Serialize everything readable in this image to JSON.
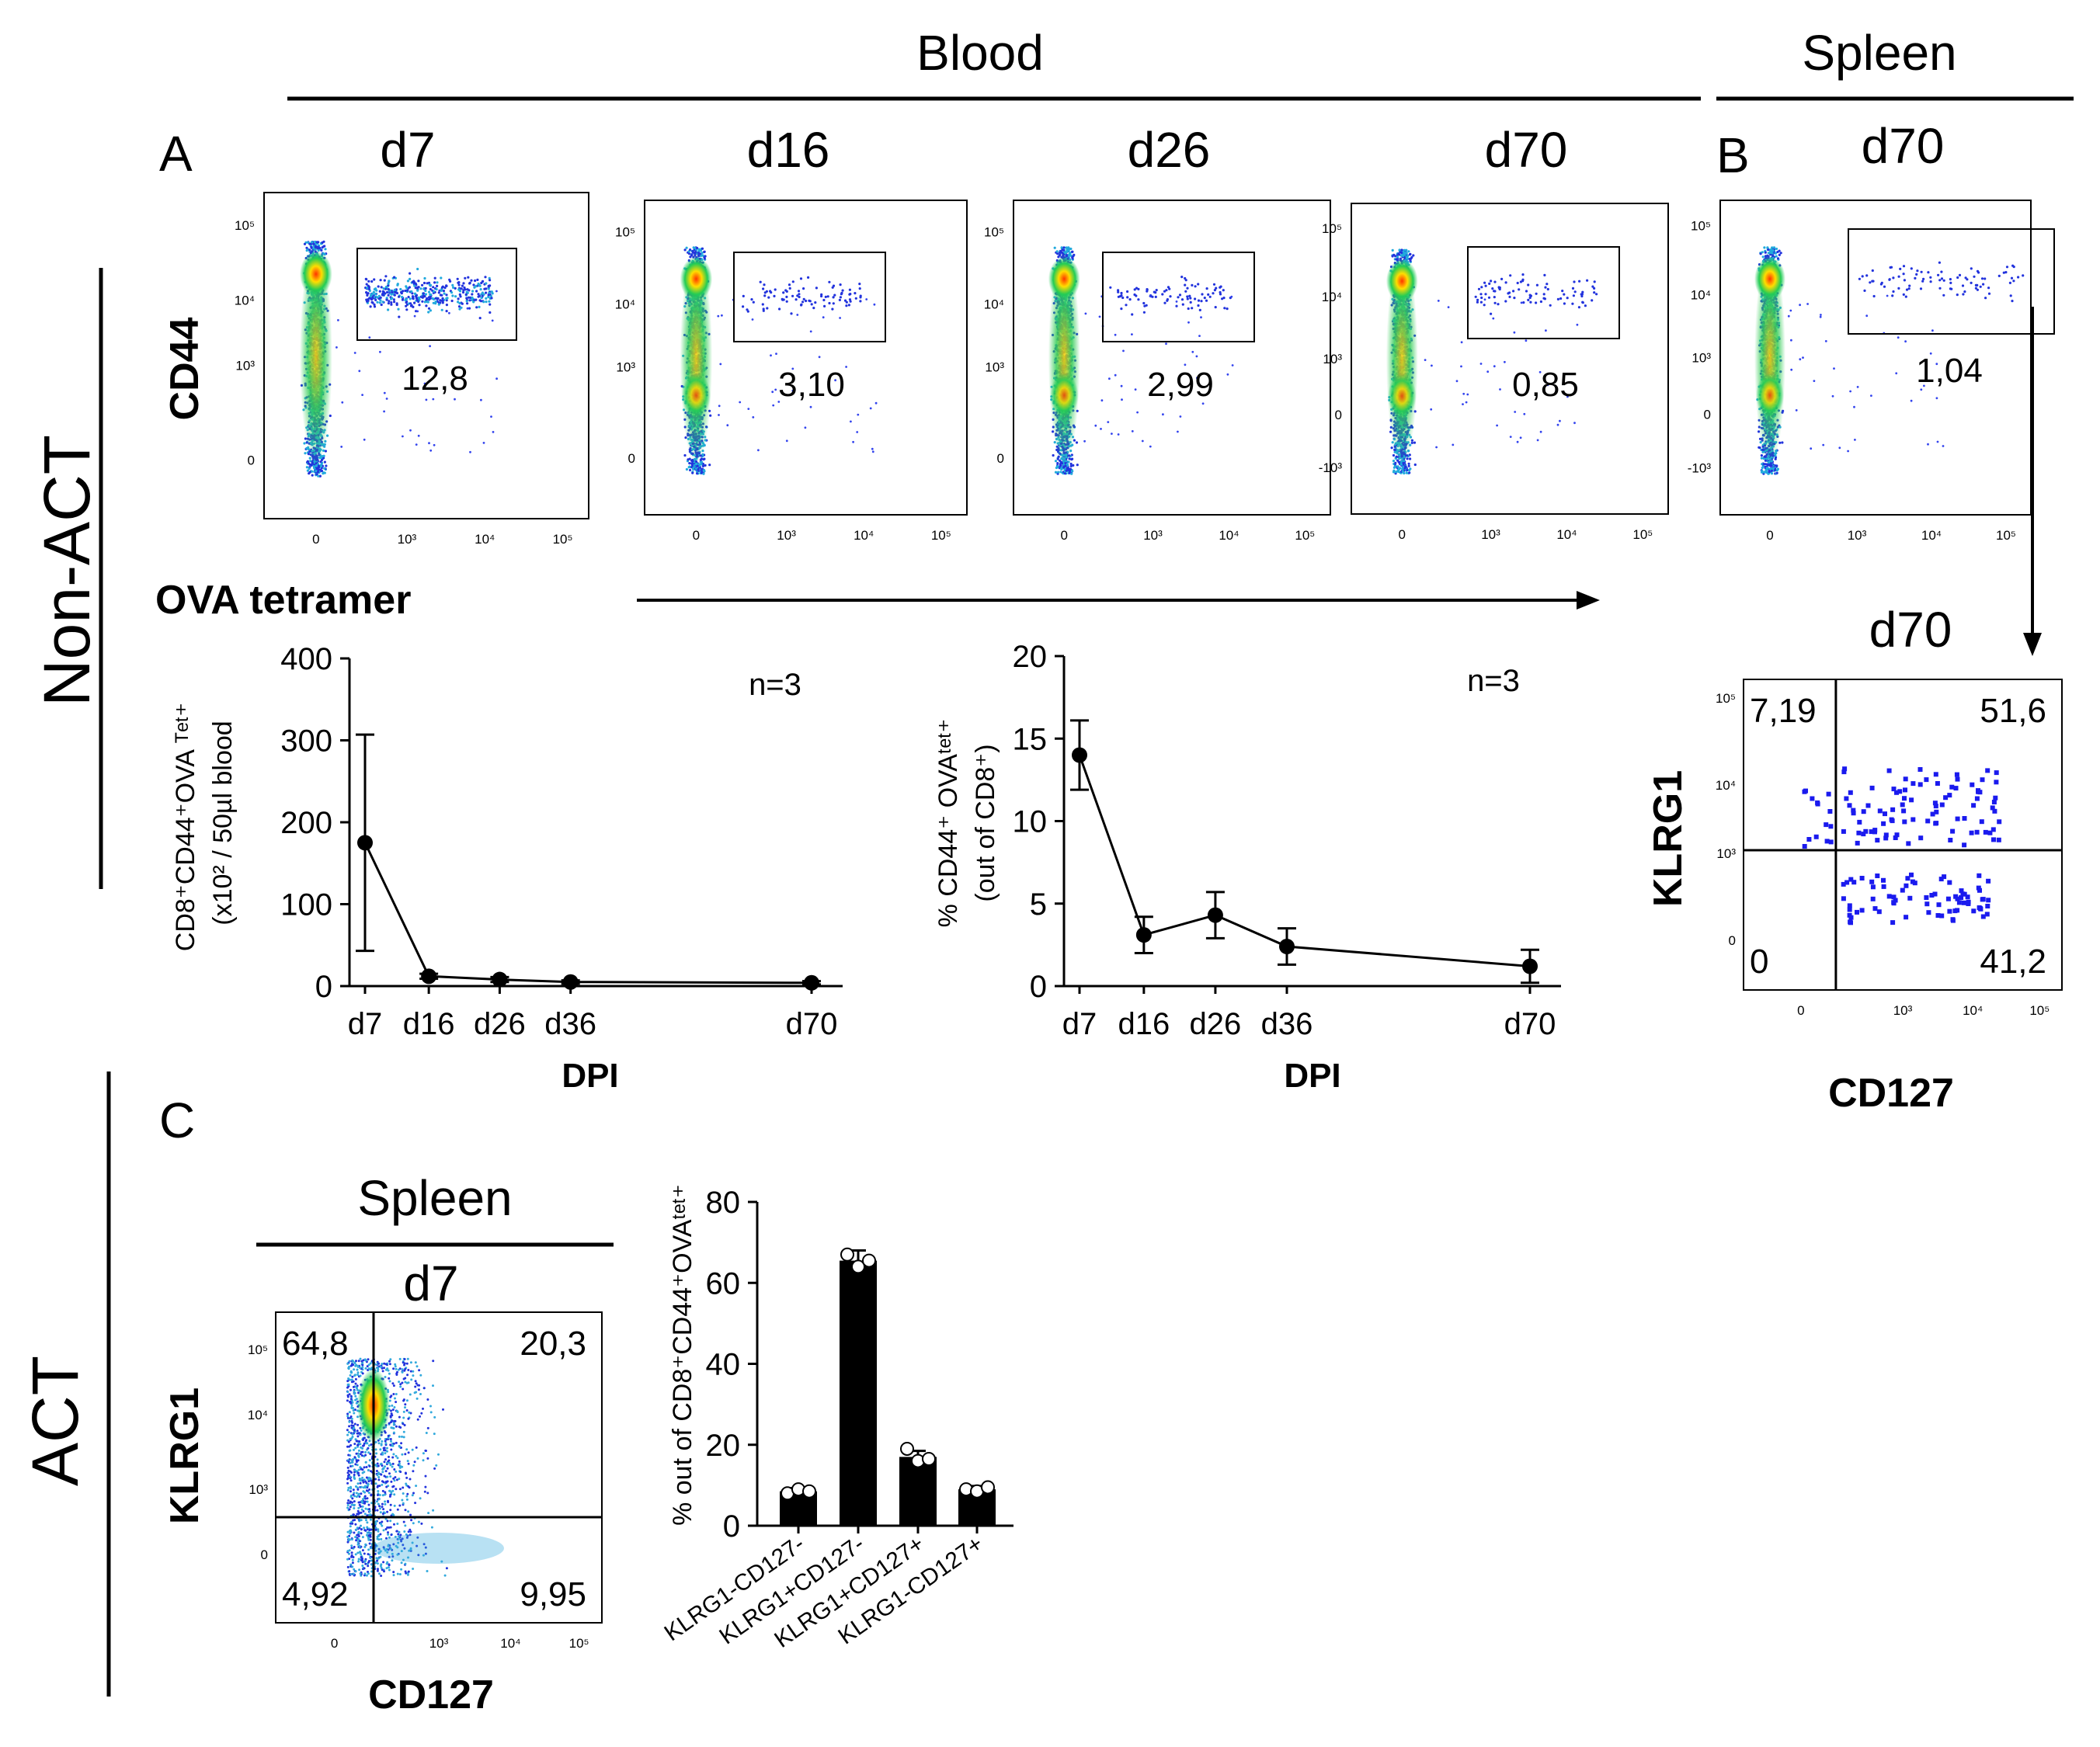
{
  "figure": {
    "blood_label": "Blood",
    "spleen_label": "Spleen",
    "non_act_label": "Non-ACT",
    "act_label": "ACT",
    "panel_a": "A",
    "panel_b": "B",
    "panel_c": "C",
    "timepoints": [
      "d7",
      "d16",
      "d26",
      "d70"
    ],
    "spleen_timepoint": "d70",
    "cd44_label": "CD44",
    "tetramer_label": "OVA tetramer",
    "klrg1_label": "KLRG1",
    "cd127_label": "CD127",
    "c_spleen_label": "Spleen",
    "c_timepoint": "d7",
    "b_zoom_timepoint": "d70"
  },
  "flow_plots": [
    {
      "label": "d7",
      "gate_pct": "12,8",
      "y_ticks": [
        "10⁵",
        "10⁴",
        "10³",
        "0"
      ],
      "x_ticks": [
        "0",
        "10³",
        "10⁴",
        "10⁵"
      ]
    },
    {
      "label": "d16",
      "gate_pct": "3,10",
      "y_ticks": [
        "10⁵",
        "10⁴",
        "10³",
        "0"
      ],
      "x_ticks": [
        "0",
        "10³",
        "10⁴",
        "10⁵"
      ]
    },
    {
      "label": "d26",
      "gate_pct": "2,99",
      "y_ticks": [
        "10⁵",
        "10⁴",
        "10³",
        "0"
      ],
      "x_ticks": [
        "0",
        "10³",
        "10⁴",
        "10⁵"
      ]
    },
    {
      "label": "d70",
      "gate_pct": "0,85",
      "y_ticks": [
        "10⁵",
        "10⁴",
        "10³",
        "0",
        "-10³"
      ],
      "x_ticks": [
        "0",
        "10³",
        "10⁴",
        "10⁵"
      ]
    },
    {
      "label": "d70",
      "gate_pct": "1,04",
      "y_ticks": [
        "10⁵",
        "10⁴",
        "10³",
        "0",
        "-10³"
      ],
      "x_ticks": [
        "0",
        "10³",
        "10⁴",
        "10⁵"
      ]
    }
  ],
  "quadrants": {
    "b": {
      "q_ul": "7,19",
      "q_ur": "51,6",
      "q_ll": "0",
      "q_lr": "41,2"
    },
    "c": {
      "q_ul": "64,8",
      "q_ur": "20,3",
      "q_ll": "4,92",
      "q_lr": "9,95"
    }
  },
  "chart_data": [
    {
      "type": "line",
      "x": [
        "d7",
        "d16",
        "d26",
        "d36",
        "d70"
      ],
      "x_days": [
        7,
        16,
        26,
        36,
        70
      ],
      "values": [
        175,
        12,
        8,
        5,
        4
      ],
      "error": [
        132,
        3,
        3,
        2,
        2
      ],
      "ylabel_line1": "CD8⁺CD44⁺OVA ᵀᵉᵗ⁺",
      "ylabel_line2": "(x10² / 50µl blood",
      "xlabel": "DPI",
      "ylim": [
        0,
        400
      ],
      "y_ticks": [
        0,
        100,
        200,
        300,
        400
      ],
      "annotation": "n=3"
    },
    {
      "type": "line",
      "x": [
        "d7",
        "d16",
        "d26",
        "d36",
        "d70"
      ],
      "x_days": [
        7,
        16,
        26,
        36,
        70
      ],
      "values": [
        14,
        3.1,
        4.3,
        2.4,
        1.2
      ],
      "error": [
        2.1,
        1.1,
        1.4,
        1.1,
        1.0
      ],
      "ylabel_line1": "% CD44⁺ OVAᵗᵉᵗ⁺",
      "ylabel_line2": "(out of CD8⁺)",
      "xlabel": "DPI",
      "ylim": [
        0,
        20
      ],
      "y_ticks": [
        0,
        5,
        10,
        15,
        20
      ],
      "annotation": "n=3"
    },
    {
      "type": "bar",
      "categories": [
        "KLRG1-CD127-",
        "KLRG1+CD127-",
        "KLRG1+CD127+",
        "KLRG1-CD127+"
      ],
      "values": [
        8.5,
        65.5,
        17,
        9
      ],
      "error": [
        0.8,
        2.5,
        1.5,
        0.8
      ],
      "points": [
        [
          8,
          9,
          8.5
        ],
        [
          67,
          64,
          65.5
        ],
        [
          19,
          16,
          16.5
        ],
        [
          9,
          8.5,
          9.5
        ]
      ],
      "ylabel": "% out of CD8⁺CD44⁺OVAᵗᵉᵗ⁺",
      "ylim": [
        0,
        80
      ],
      "y_ticks": [
        0,
        20,
        40,
        60,
        80
      ]
    }
  ]
}
